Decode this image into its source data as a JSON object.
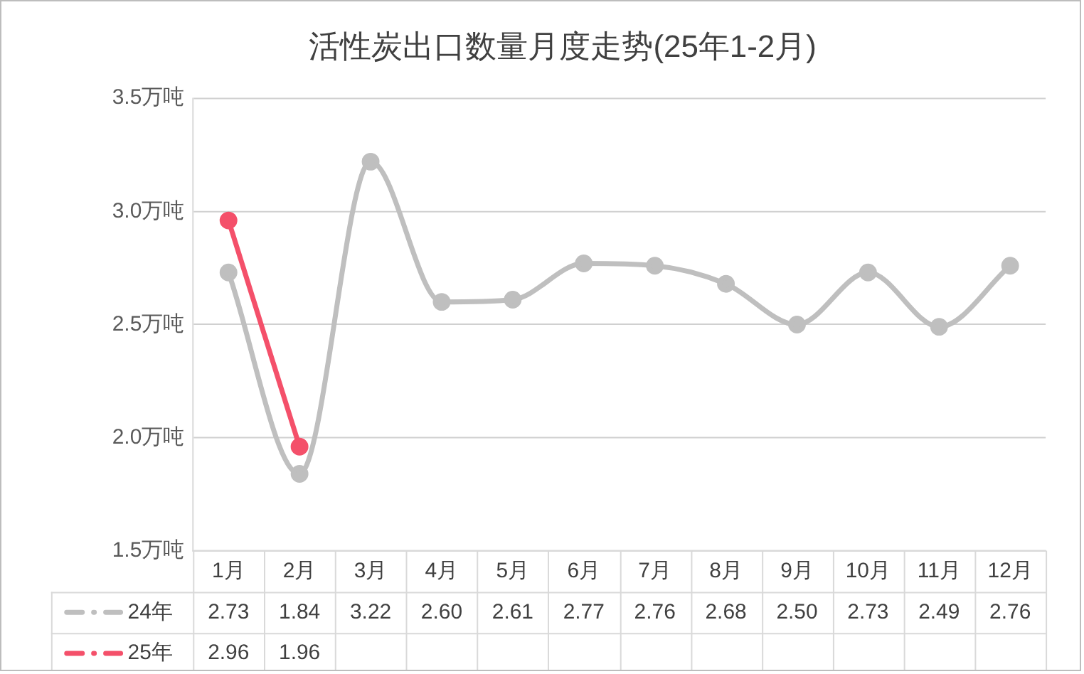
{
  "chart_data": {
    "type": "line",
    "title": "活性炭出口数量月度走势(25年1-2月)",
    "categories": [
      "1月",
      "2月",
      "3月",
      "4月",
      "5月",
      "6月",
      "7月",
      "8月",
      "9月",
      "10月",
      "11月",
      "12月"
    ],
    "series": [
      {
        "name": "24年",
        "color": "#bfbfbf",
        "values": [
          2.73,
          1.84,
          3.22,
          2.6,
          2.61,
          2.77,
          2.76,
          2.68,
          2.5,
          2.73,
          2.49,
          2.76
        ],
        "value_labels": [
          "2.73",
          "1.84",
          "3.22",
          "2.60",
          "2.61",
          "2.77",
          "2.76",
          "2.68",
          "2.50",
          "2.73",
          "2.49",
          "2.76"
        ]
      },
      {
        "name": "25年",
        "color": "#f4506a",
        "values": [
          2.96,
          1.96,
          null,
          null,
          null,
          null,
          null,
          null,
          null,
          null,
          null,
          null
        ],
        "value_labels": [
          "2.96",
          "1.96",
          null,
          null,
          null,
          null,
          null,
          null,
          null,
          null,
          null,
          null
        ]
      }
    ],
    "ylim": [
      1.5,
      3.5
    ],
    "yticks": [
      {
        "value": 1.5,
        "label": "1.5万吨"
      },
      {
        "value": 2.0,
        "label": "2.0万吨"
      },
      {
        "value": 2.5,
        "label": "2.5万吨"
      },
      {
        "value": 3.0,
        "label": "3.0万吨"
      },
      {
        "value": 3.5,
        "label": "3.5万吨"
      }
    ],
    "grid": "y",
    "legend": "bottom",
    "marker": "circle",
    "line_style": "solid"
  }
}
